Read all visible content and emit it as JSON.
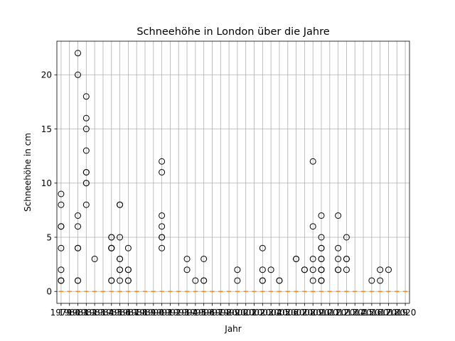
{
  "chart_data": {
    "type": "box",
    "title": "Schneehöhe in London über die Jahre",
    "xlabel": "Jahr",
    "ylabel": "Schneehöhe in cm",
    "ylim": [
      -1.1,
      23.1
    ],
    "yticks": [
      0,
      5,
      10,
      15,
      20
    ],
    "grid": true,
    "categories": [
      "1979",
      "1980",
      "1981",
      "1982",
      "1983",
      "1984",
      "1985",
      "1986",
      "1987",
      "1988",
      "1989",
      "1990",
      "1991",
      "1992",
      "1993",
      "1994",
      "1995",
      "1996",
      "1997",
      "1998",
      "1999",
      "2000",
      "2001",
      "2002",
      "2003",
      "2004",
      "2005",
      "2006",
      "2007",
      "2008",
      "2009",
      "2010",
      "2011",
      "2012",
      "2013",
      "2014",
      "2015",
      "2016",
      "2017",
      "2018",
      "2019",
      "2020"
    ],
    "xtick_labels_shown": "1979 ... 2020 (overlapping, largely illegible)",
    "median": 0,
    "outliers": [
      {
        "x": "1979",
        "values": [
          9,
          8,
          6,
          6,
          4,
          2,
          1,
          1,
          1
        ]
      },
      {
        "x": "1981",
        "values": [
          22,
          20,
          7,
          6,
          4,
          4,
          1,
          1
        ]
      },
      {
        "x": "1982",
        "values": [
          18,
          16,
          15,
          13,
          11,
          11,
          10,
          10,
          8
        ]
      },
      {
        "x": "1983",
        "values": [
          3
        ]
      },
      {
        "x": "1985",
        "values": [
          5,
          5,
          4,
          4,
          4,
          4,
          1,
          1
        ]
      },
      {
        "x": "1986",
        "values": [
          8,
          8,
          5,
          3,
          3,
          2,
          2,
          1
        ]
      },
      {
        "x": "1987",
        "values": [
          4,
          2,
          2,
          1,
          1
        ]
      },
      {
        "x": "1991",
        "values": [
          12,
          11,
          7,
          6,
          5,
          5,
          4
        ]
      },
      {
        "x": "1994",
        "values": [
          3,
          2
        ]
      },
      {
        "x": "1995",
        "values": [
          1
        ]
      },
      {
        "x": "1996",
        "values": [
          3,
          1,
          1
        ]
      },
      {
        "x": "2000",
        "values": [
          2,
          1
        ]
      },
      {
        "x": "2003",
        "values": [
          4,
          2,
          1,
          1
        ]
      },
      {
        "x": "2004",
        "values": [
          2
        ]
      },
      {
        "x": "2005",
        "values": [
          1,
          1
        ]
      },
      {
        "x": "2007",
        "values": [
          3,
          3
        ]
      },
      {
        "x": "2008",
        "values": [
          2,
          2
        ]
      },
      {
        "x": "2009",
        "values": [
          12,
          6,
          3,
          2,
          1
        ]
      },
      {
        "x": "2010",
        "values": [
          7,
          5,
          4,
          4,
          3,
          3,
          2,
          2,
          2,
          1,
          1,
          1
        ]
      },
      {
        "x": "2012",
        "values": [
          7,
          4,
          3,
          2,
          2
        ]
      },
      {
        "x": "2013",
        "values": [
          5,
          3,
          3,
          2
        ]
      },
      {
        "x": "2016",
        "values": [
          1
        ]
      },
      {
        "x": "2017",
        "values": [
          2,
          1
        ]
      },
      {
        "x": "2018",
        "values": [
          2
        ]
      }
    ]
  },
  "colors": {
    "median_line": "#ff7f0e",
    "outlier_edge": "#000000",
    "grid": "#b0b0b0"
  }
}
